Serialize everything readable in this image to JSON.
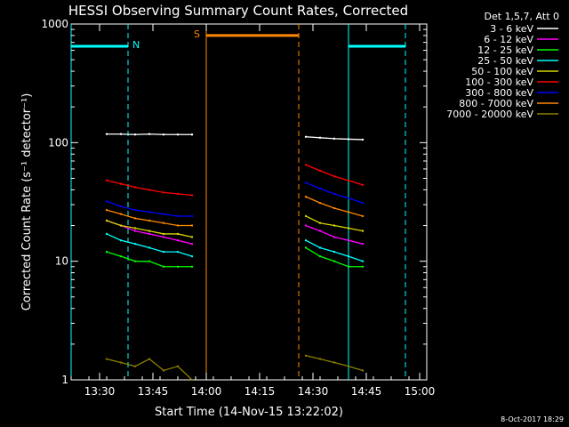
{
  "chart_data": {
    "type": "line",
    "title": "HESSI Observing Summary Count Rates, Corrected",
    "xlabel": "Start Time (14-Nov-15 13:22:02)",
    "ylabel": "Corrected Count Rate (s⁻¹ detector⁻¹)",
    "y_scale": "log",
    "ylim": [
      1,
      1000
    ],
    "xlim": [
      "13:22",
      "15:02"
    ],
    "x_ticks": [
      "13:30",
      "13:45",
      "14:00",
      "14:15",
      "14:30",
      "14:45",
      "15:00"
    ],
    "y_ticks": [
      "1",
      "10",
      "100",
      "1000"
    ],
    "footer_date": "8-Oct-2017 18:29",
    "legend": {
      "header": "Det 1,5,7, Att 0",
      "position": "right"
    },
    "series": [
      {
        "name": "3 - 6 keV",
        "color": "#ffffff",
        "x": [
          "13:32",
          "13:36",
          "13:40",
          "13:44",
          "13:48",
          "13:52",
          "13:56",
          "14:28",
          "14:32",
          "14:36",
          "14:40",
          "14:44"
        ],
        "values": [
          118,
          118,
          117,
          118,
          117,
          117,
          117,
          112,
          110,
          108,
          107,
          106
        ]
      },
      {
        "name": "6 - 12 keV",
        "color": "#ff00ff",
        "x": [
          "13:32",
          "13:36",
          "13:40",
          "13:44",
          "13:48",
          "13:52",
          "13:56",
          "14:28",
          "14:32",
          "14:36",
          "14:40",
          "14:44"
        ],
        "values": [
          22,
          20,
          18,
          17,
          16,
          15,
          14,
          20,
          18,
          16,
          15,
          14
        ]
      },
      {
        "name": "12 - 25 keV",
        "color": "#00ff00",
        "x": [
          "13:32",
          "13:36",
          "13:40",
          "13:44",
          "13:48",
          "13:52",
          "13:56",
          "14:28",
          "14:32",
          "14:36",
          "14:40",
          "14:44"
        ],
        "values": [
          12,
          11,
          10,
          10,
          9,
          9,
          9,
          13,
          11,
          10,
          9,
          9
        ]
      },
      {
        "name": "25 - 50 keV",
        "color": "#00ffff",
        "x": [
          "13:32",
          "13:36",
          "13:40",
          "13:44",
          "13:48",
          "13:52",
          "13:56",
          "14:28",
          "14:32",
          "14:36",
          "14:40",
          "14:44"
        ],
        "values": [
          17,
          15,
          14,
          13,
          12,
          12,
          11,
          15,
          13,
          12,
          11,
          10
        ]
      },
      {
        "name": "50 - 100 keV",
        "color": "#d6d600",
        "x": [
          "13:32",
          "13:36",
          "13:40",
          "13:44",
          "13:48",
          "13:52",
          "13:56",
          "14:28",
          "14:32",
          "14:36",
          "14:40",
          "14:44"
        ],
        "values": [
          22,
          20,
          19,
          18,
          17,
          17,
          16,
          24,
          21,
          20,
          19,
          18
        ]
      },
      {
        "name": "100 - 300 keV",
        "color": "#ff0000",
        "x": [
          "13:32",
          "13:36",
          "13:40",
          "13:44",
          "13:48",
          "13:52",
          "13:56",
          "14:28",
          "14:32",
          "14:36",
          "14:40",
          "14:44"
        ],
        "values": [
          48,
          45,
          42,
          40,
          38,
          37,
          36,
          65,
          58,
          52,
          48,
          44
        ]
      },
      {
        "name": "300 - 800 keV",
        "color": "#0000ff",
        "x": [
          "13:32",
          "13:36",
          "13:40",
          "13:44",
          "13:48",
          "13:52",
          "13:56",
          "14:28",
          "14:32",
          "14:36",
          "14:40",
          "14:44"
        ],
        "values": [
          32,
          29,
          27,
          26,
          25,
          24,
          24,
          46,
          41,
          37,
          34,
          31
        ]
      },
      {
        "name": "800 - 7000 keV",
        "color": "#ff8800",
        "x": [
          "13:32",
          "13:36",
          "13:40",
          "13:44",
          "13:48",
          "13:52",
          "13:56",
          "14:28",
          "14:32",
          "14:36",
          "14:40",
          "14:44"
        ],
        "values": [
          27,
          25,
          23,
          22,
          21,
          20,
          20,
          35,
          31,
          28,
          26,
          24
        ]
      },
      {
        "name": "7000 - 20000 keV",
        "color": "#8b8000",
        "x": [
          "13:32",
          "13:36",
          "13:40",
          "13:44",
          "13:48",
          "13:52",
          "13:56",
          "14:28",
          "14:32",
          "14:36",
          "14:40",
          "14:44"
        ],
        "values": [
          1.5,
          1.4,
          1.3,
          1.5,
          1.2,
          1.3,
          1.0,
          1.6,
          1.5,
          1.4,
          1.3,
          1.2
        ]
      }
    ],
    "flags": [
      {
        "label": "N",
        "color": "#00ffff",
        "bars": [
          [
            "13:22",
            "13:38"
          ],
          [
            "14:40",
            "14:56"
          ]
        ],
        "level": 650
      },
      {
        "label": "S",
        "color": "#ff8800",
        "bars": [
          [
            "14:00",
            "14:26"
          ]
        ],
        "level": 800
      }
    ],
    "markers": [
      {
        "color": "#00ffff",
        "style": "solid",
        "x": "13:22"
      },
      {
        "color": "#00ffff",
        "style": "dashed",
        "x": "13:38"
      },
      {
        "color": "#ff8800",
        "style": "solid",
        "x": "14:00"
      },
      {
        "color": "#ff8800",
        "style": "dashed",
        "x": "14:26"
      },
      {
        "color": "#00ffff",
        "style": "solid",
        "x": "14:40"
      },
      {
        "color": "#00ffff",
        "style": "dashed",
        "x": "14:56"
      }
    ]
  }
}
